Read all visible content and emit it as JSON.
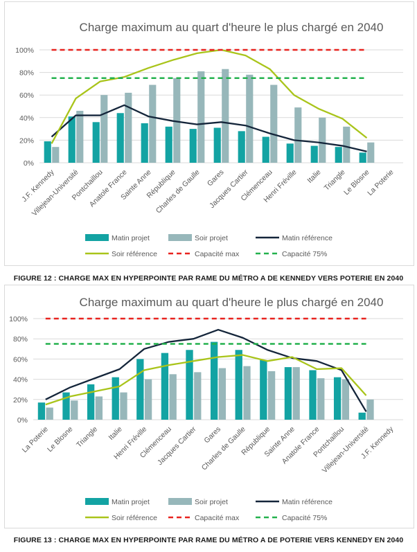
{
  "chart_data": [
    {
      "type": "bar",
      "title": "Charge maximum au quart d'heure le plus chargé en 2040",
      "categories": [
        "J.F. Kennedy",
        "Villejean-Université",
        "Pontchaillou",
        "Anatole France",
        "Sainte Anne",
        "République",
        "Charles de Gaulle",
        "Gares",
        "Jacques Cartier",
        "Clémenceau",
        "Henri Fréville",
        "Italie",
        "Triangle",
        "Le Blosne",
        "La Poterie"
      ],
      "yticks": [
        "0%",
        "20%",
        "40%",
        "60%",
        "80%",
        "100%"
      ],
      "ylim": [
        0,
        100
      ],
      "series": [
        {
          "name": "Matin projet",
          "kind": "bar",
          "color": "#13a3a3",
          "values": [
            19,
            41,
            36,
            44,
            35,
            32,
            30,
            31,
            28,
            23,
            17,
            15,
            14,
            9,
            null
          ]
        },
        {
          "name": "Soir projet",
          "kind": "bar",
          "color": "#97b7ba",
          "values": [
            14,
            46,
            60,
            62,
            69,
            75,
            81,
            83,
            78,
            69,
            49,
            40,
            32,
            18,
            null
          ]
        },
        {
          "name": "Matin référence",
          "kind": "line",
          "color": "#14253a",
          "values": [
            23,
            42,
            42,
            51,
            41,
            37,
            34,
            36,
            33,
            26,
            20,
            18,
            15,
            10,
            null
          ]
        },
        {
          "name": "Soir référence",
          "kind": "line",
          "color": "#a9c41a",
          "values": [
            17,
            57,
            72,
            76,
            84,
            91,
            97,
            100,
            95,
            83,
            60,
            48,
            39,
            22,
            null
          ]
        },
        {
          "name": "Capacité max",
          "kind": "dashed",
          "color": "#e8231f",
          "values": [
            100,
            100,
            100,
            100,
            100,
            100,
            100,
            100,
            100,
            100,
            100,
            100,
            100,
            100,
            null
          ]
        },
        {
          "name": "Capacité 75%",
          "kind": "dashed",
          "color": "#23b14d",
          "values": [
            75,
            75,
            75,
            75,
            75,
            75,
            75,
            75,
            75,
            75,
            75,
            75,
            75,
            75,
            null
          ]
        }
      ],
      "legend": "bottom",
      "caption": "FIGURE 12 : CHARGE MAX EN HYPERPOINTE PAR RAME DU MÉTRO A DE KENNEDY VERS POTERIE EN 2040"
    },
    {
      "type": "bar",
      "title": "Charge maximum au quart d'heure le plus chargé en 2040",
      "categories": [
        "La Poterie",
        "Le Blosne",
        "Triangle",
        "Italie",
        "Henri Fréville",
        "Clémenceau",
        "Jacques Cartier",
        "Gares",
        "Charles de Gaulle",
        "République",
        "Sainte Anne",
        "Anatole France",
        "Pontchaillou",
        "Villejean-Université",
        "J.F. Kennedy"
      ],
      "yticks": [
        "0%",
        "20%",
        "40%",
        "60%",
        "80%",
        "100%"
      ],
      "ylim": [
        0,
        100
      ],
      "series": [
        {
          "name": "Matin projet",
          "kind": "bar",
          "color": "#13a3a3",
          "values": [
            17,
            27,
            35,
            42,
            60,
            66,
            69,
            77,
            69,
            59,
            52,
            49,
            42,
            7,
            null
          ]
        },
        {
          "name": "Soir projet",
          "kind": "bar",
          "color": "#97b7ba",
          "values": [
            12,
            19,
            23,
            27,
            40,
            45,
            47,
            51,
            53,
            48,
            52,
            41,
            40,
            20,
            null
          ]
        },
        {
          "name": "Matin référence",
          "kind": "line",
          "color": "#14253a",
          "values": [
            20,
            32,
            41,
            50,
            70,
            77,
            80,
            89,
            81,
            69,
            61,
            58,
            49,
            8,
            null
          ]
        },
        {
          "name": "Soir référence",
          "kind": "line",
          "color": "#a9c41a",
          "values": [
            15,
            23,
            28,
            33,
            49,
            54,
            58,
            62,
            64,
            58,
            62,
            50,
            51,
            24,
            null
          ]
        },
        {
          "name": "Capacité max",
          "kind": "dashed",
          "color": "#e8231f",
          "values": [
            100,
            100,
            100,
            100,
            100,
            100,
            100,
            100,
            100,
            100,
            100,
            100,
            100,
            100,
            null
          ]
        },
        {
          "name": "Capacité 75%",
          "kind": "dashed",
          "color": "#23b14d",
          "values": [
            75,
            75,
            75,
            75,
            75,
            75,
            75,
            75,
            75,
            75,
            75,
            75,
            75,
            75,
            null
          ]
        }
      ],
      "legend": "bottom",
      "caption": "FIGURE 13 : CHARGE MAX EN HYPERPOINTE PAR RAME DU MÉTRO A DE POTERIE VERS KENNEDY EN 2040"
    }
  ]
}
